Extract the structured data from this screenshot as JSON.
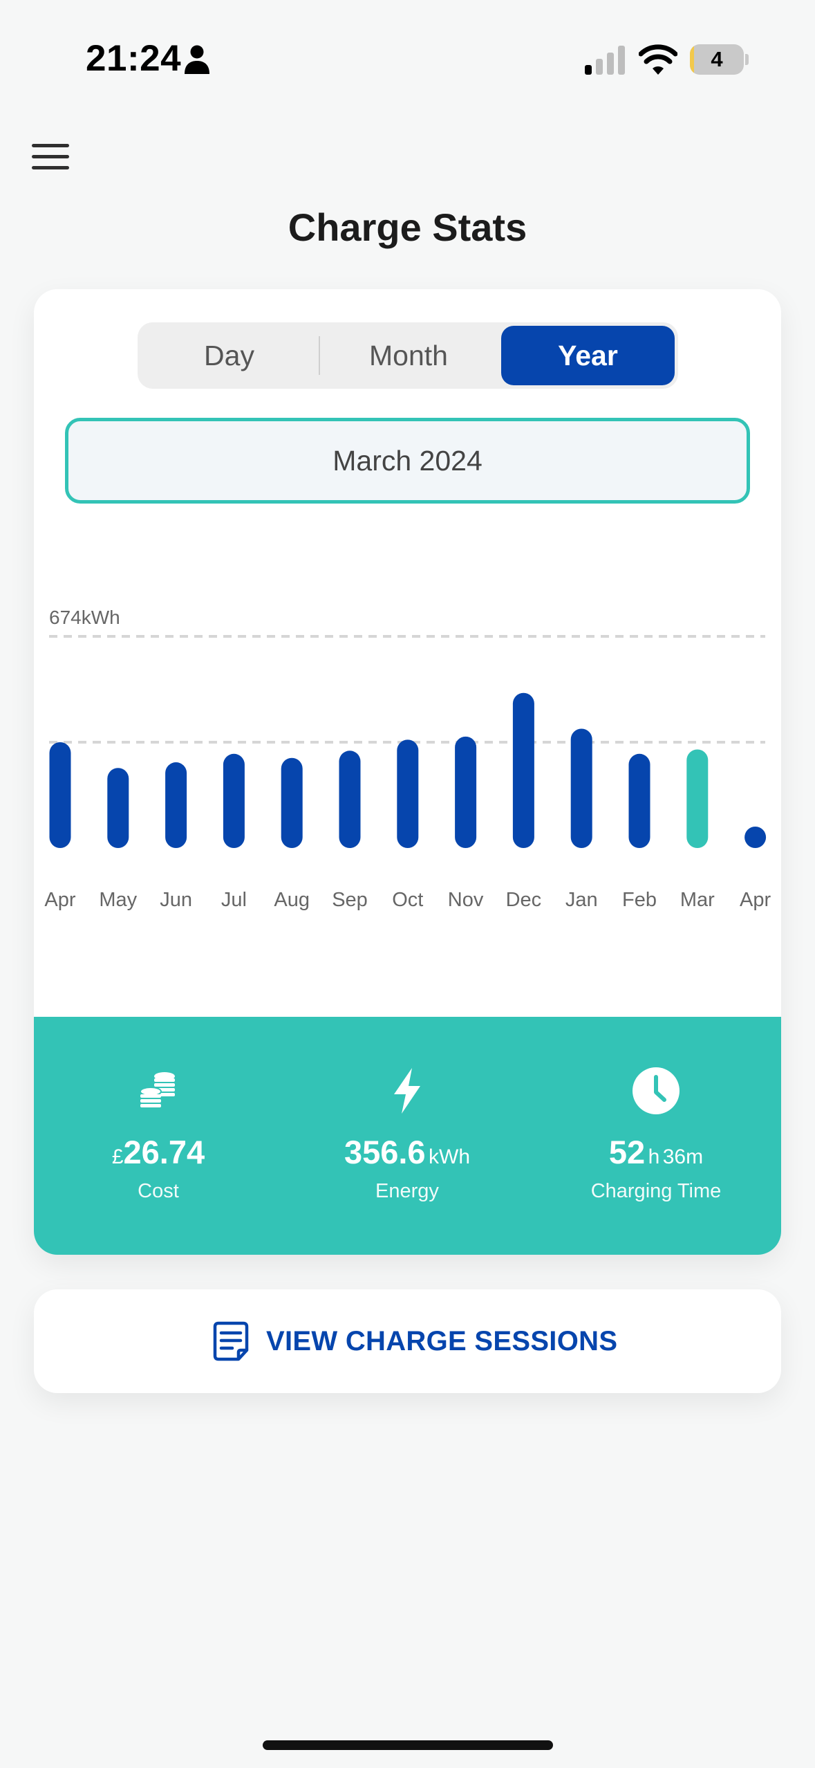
{
  "status_bar": {
    "time": "21:24",
    "battery_level": "4",
    "icons": [
      "person-icon",
      "cellular-signal-icon",
      "wifi-icon",
      "battery-icon"
    ]
  },
  "header": {
    "title": "Charge Stats",
    "menu_icon": "hamburger-menu-icon"
  },
  "period_selector": {
    "options": [
      "Day",
      "Month",
      "Year"
    ],
    "selected": "Year"
  },
  "date_picker": {
    "value": "March 2024"
  },
  "colors": {
    "accent_blue": "#0645ad",
    "accent_teal": "#33c3b6",
    "background": "#f6f7f7"
  },
  "chart_data": {
    "type": "bar",
    "max_label": "674kWh",
    "ylim": [
      0,
      674
    ],
    "reference_lines": [
      674,
      337
    ],
    "grid": "dashed reference lines",
    "categories": [
      "Apr",
      "May",
      "Jun",
      "Jul",
      "Aug",
      "Sep",
      "Oct",
      "Nov",
      "Dec",
      "Jan",
      "Feb",
      "Mar",
      "Apr"
    ],
    "values": [
      337,
      255,
      273,
      300,
      287,
      310,
      345,
      355,
      494,
      380,
      300,
      314,
      0
    ],
    "highlighted_index": 11,
    "bar_color": "#0645ad",
    "highlight_color": "#33c3b6"
  },
  "summary": {
    "cost": {
      "currency": "£",
      "value": "26.74",
      "label": "Cost",
      "icon": "coins-icon"
    },
    "energy": {
      "value": "356.6",
      "unit": "kWh",
      "label": "Energy",
      "icon": "lightning-bolt-icon"
    },
    "charging_time": {
      "hours": "52",
      "hours_unit": "h",
      "minutes": "36m",
      "label": "Charging Time",
      "icon": "clock-icon"
    }
  },
  "sessions_button": {
    "label": "VIEW CHARGE SESSIONS",
    "icon": "document-list-icon"
  }
}
